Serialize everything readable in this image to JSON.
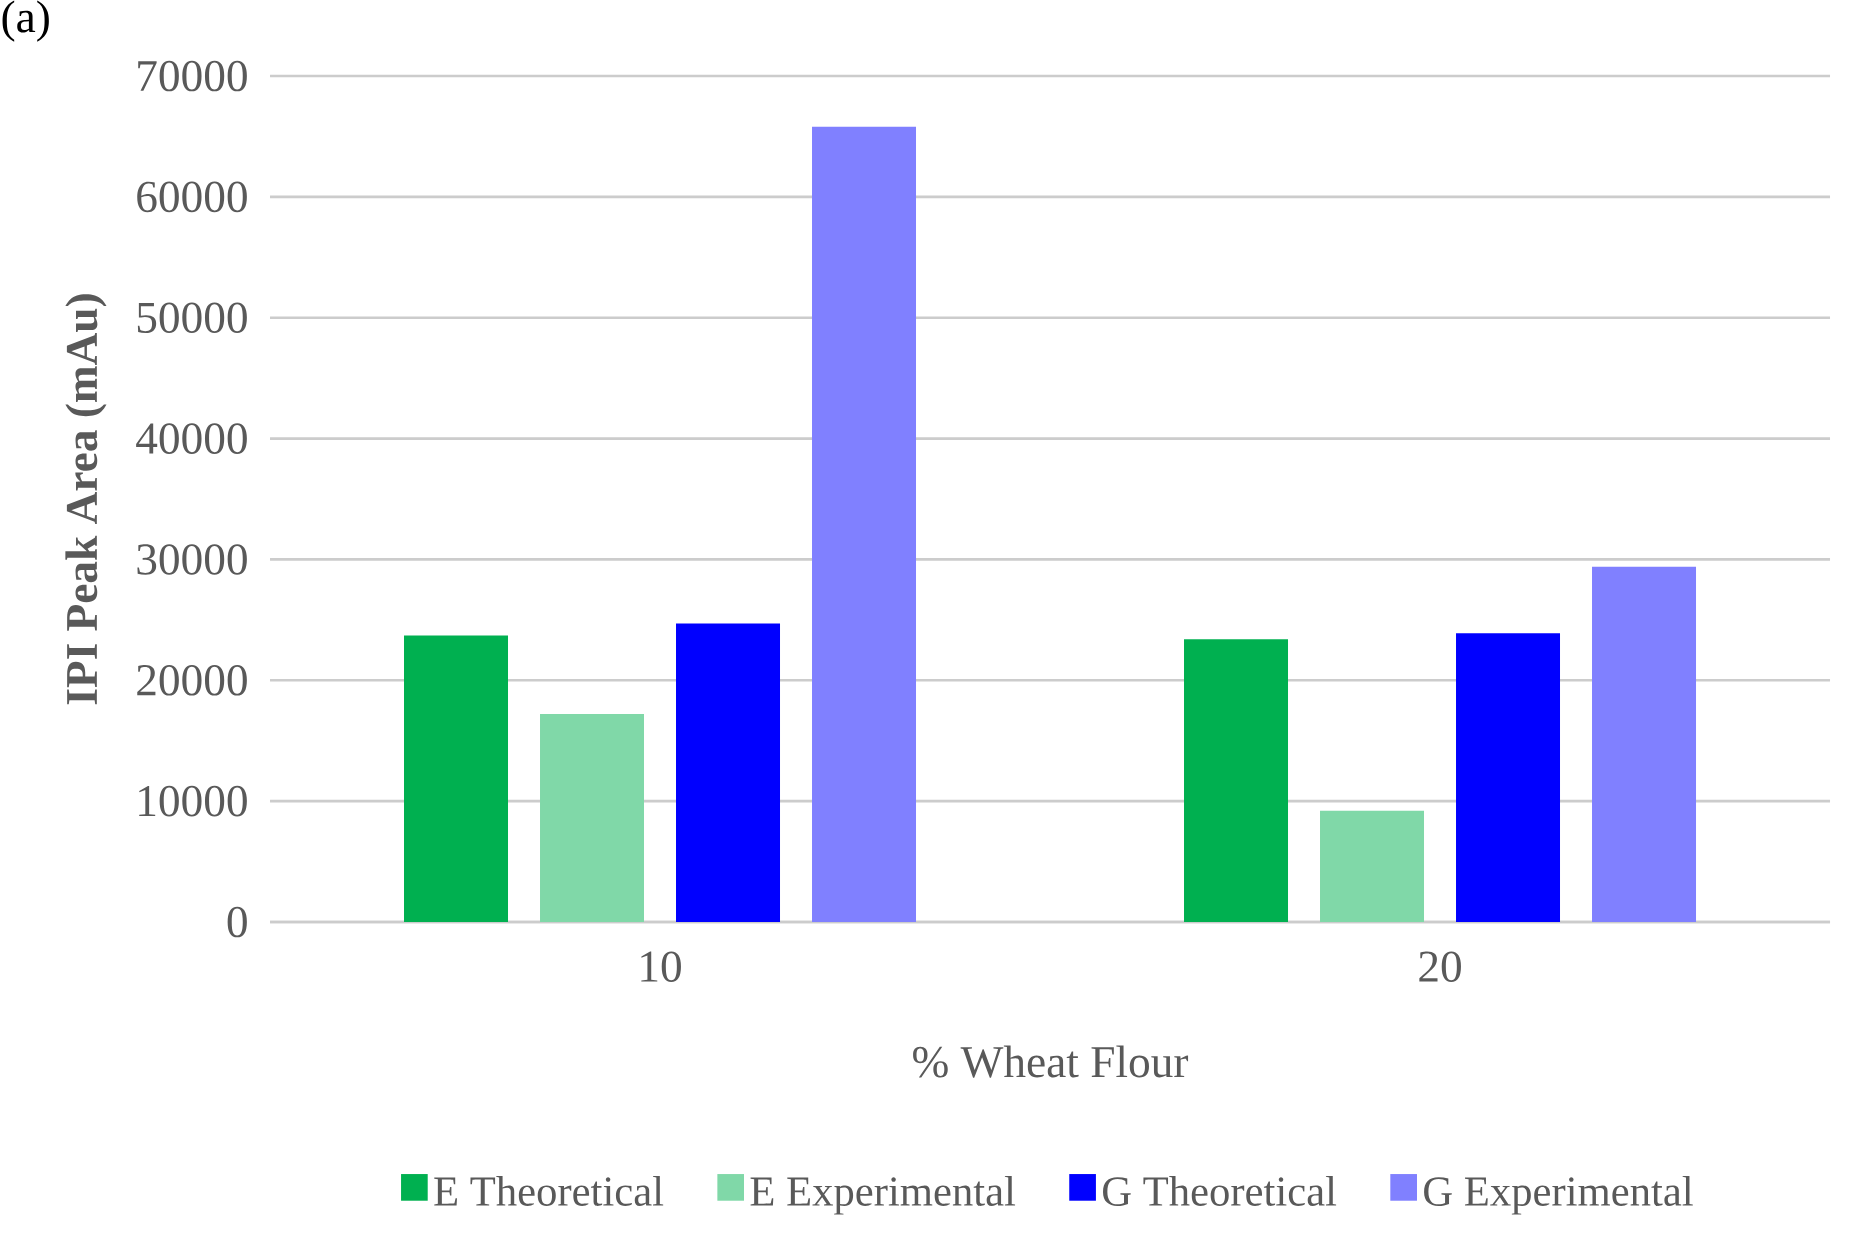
{
  "chart_data": {
    "type": "bar",
    "xlabel": "% Wheat Flour",
    "ylabel": "IPI Peak Area (mAu)",
    "annotations": [
      "(a)"
    ],
    "categories": [
      "10",
      "20"
    ],
    "series": [
      {
        "name": "E Theoretical",
        "color": "#00b050",
        "values": [
          23700,
          23400
        ]
      },
      {
        "name": "E Experimental",
        "color": "#80d8a8",
        "values": [
          17200,
          9200
        ]
      },
      {
        "name": "G Theoretical",
        "color": "#0000ff",
        "values": [
          24700,
          23900
        ]
      },
      {
        "name": "G Experimental",
        "color": "#8080ff",
        "values": [
          65800,
          29400
        ]
      }
    ],
    "ylim": [
      0,
      70000
    ],
    "yticks": [
      0,
      10000,
      20000,
      30000,
      40000,
      50000,
      60000,
      70000
    ],
    "grid": "y",
    "legend": "bottom"
  }
}
